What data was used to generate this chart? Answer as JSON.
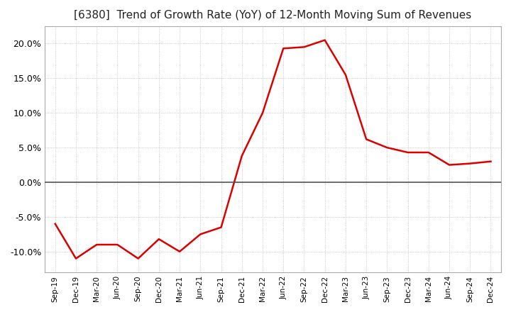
{
  "title": "[6380]  Trend of Growth Rate (YoY) of 12-Month Moving Sum of Revenues",
  "title_fontsize": 11,
  "line_color": "#dd0000",
  "background_color": "#ffffff",
  "grid_color": "#bbbbbb",
  "ylim": [
    -0.13,
    0.225
  ],
  "yticks": [
    -0.1,
    -0.05,
    0.0,
    0.05,
    0.1,
    0.15,
    0.2
  ],
  "x_labels": [
    "Sep-19",
    "Dec-19",
    "Mar-20",
    "Jun-20",
    "Sep-20",
    "Dec-20",
    "Mar-21",
    "Jun-21",
    "Sep-21",
    "Dec-21",
    "Mar-22",
    "Jun-22",
    "Sep-22",
    "Dec-22",
    "Mar-23",
    "Jun-23",
    "Sep-23",
    "Dec-23",
    "Mar-24",
    "Jun-24",
    "Sep-24",
    "Dec-24"
  ],
  "y_values": [
    -0.06,
    -0.11,
    -0.09,
    -0.09,
    -0.11,
    -0.082,
    -0.1,
    -0.075,
    -0.065,
    0.038,
    0.1,
    0.193,
    0.195,
    0.205,
    0.155,
    0.062,
    0.05,
    0.043,
    0.043,
    0.025,
    0.027,
    0.03
  ]
}
